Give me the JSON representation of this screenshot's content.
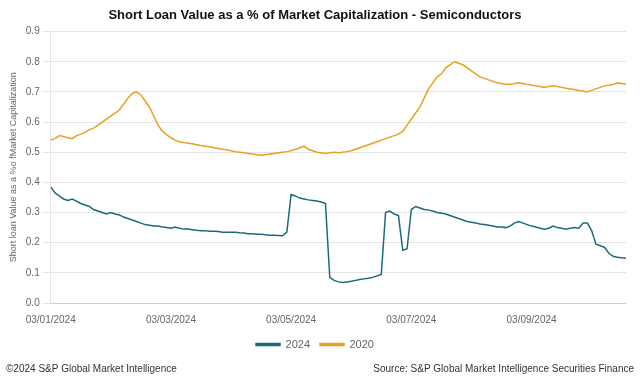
{
  "chart_data": {
    "type": "line",
    "title": "Short Loan Value as a % of Market Capitalization - Semiconductors",
    "ylabel": "Short loan Value as a %o fMarket Capitalization",
    "categories": [
      "03/01/2024",
      null,
      null,
      null,
      null,
      null,
      null,
      null,
      null,
      null,
      null,
      null,
      null,
      null,
      null,
      null,
      null,
      null,
      null,
      null,
      null,
      null,
      null,
      null,
      null,
      null,
      null,
      null,
      "03/03/2024",
      null,
      null,
      null,
      null,
      null,
      null,
      null,
      null,
      null,
      null,
      null,
      null,
      null,
      null,
      null,
      null,
      null,
      null,
      null,
      null,
      null,
      null,
      null,
      null,
      null,
      null,
      null,
      "03/05/2024",
      null,
      null,
      null,
      null,
      null,
      null,
      null,
      null,
      null,
      null,
      null,
      null,
      null,
      null,
      null,
      null,
      null,
      null,
      null,
      null,
      null,
      null,
      null,
      null,
      null,
      null,
      null,
      "03/07/2024",
      null,
      null,
      null,
      null,
      null,
      null,
      null,
      null,
      null,
      null,
      null,
      null,
      null,
      null,
      null,
      null,
      null,
      null,
      null,
      null,
      null,
      null,
      null,
      null,
      null,
      null,
      null,
      "03/09/2024",
      null,
      null,
      null,
      null,
      null,
      null,
      null,
      null,
      null,
      null,
      null,
      null,
      null,
      null,
      null,
      null,
      null,
      null,
      null,
      null,
      null,
      null
    ],
    "series": [
      {
        "name": "2024",
        "color": "#1a6b7a",
        "values": [
          0.385,
          0.365,
          0.355,
          0.345,
          0.34,
          0.345,
          0.338,
          0.33,
          0.325,
          0.32,
          0.31,
          0.305,
          0.3,
          0.295,
          0.3,
          0.295,
          0.292,
          0.285,
          0.28,
          0.275,
          0.27,
          0.265,
          0.26,
          0.258,
          0.255,
          0.255,
          0.252,
          0.25,
          0.248,
          0.252,
          0.248,
          0.245,
          0.245,
          0.243,
          0.241,
          0.24,
          0.24,
          0.238,
          0.238,
          0.237,
          0.235,
          0.235,
          0.235,
          0.235,
          0.233,
          0.232,
          0.23,
          0.23,
          0.228,
          0.228,
          0.226,
          0.225,
          0.225,
          0.224,
          0.223,
          0.235,
          0.36,
          0.355,
          0.348,
          0.345,
          0.342,
          0.34,
          0.338,
          0.335,
          0.33,
          0.085,
          0.075,
          0.07,
          0.068,
          0.07,
          0.072,
          0.075,
          0.078,
          0.08,
          0.082,
          0.085,
          0.09,
          0.095,
          0.3,
          0.305,
          0.295,
          0.29,
          0.175,
          0.18,
          0.31,
          0.32,
          0.315,
          0.31,
          0.308,
          0.305,
          0.3,
          0.298,
          0.295,
          0.29,
          0.285,
          0.28,
          0.275,
          0.27,
          0.268,
          0.265,
          0.262,
          0.26,
          0.258,
          0.255,
          0.252,
          0.252,
          0.25,
          0.255,
          0.265,
          0.27,
          0.265,
          0.26,
          0.255,
          0.252,
          0.248,
          0.245,
          0.248,
          0.255,
          0.25,
          0.248,
          0.245,
          0.248,
          0.25,
          0.248,
          0.265,
          0.265,
          0.24,
          0.195,
          0.19,
          0.185,
          0.165,
          0.155,
          0.152,
          0.15,
          0.148
        ]
      },
      {
        "name": "2020",
        "color": "#e8a020",
        "values": [
          0.54,
          0.545,
          0.555,
          0.552,
          0.548,
          0.545,
          0.555,
          0.56,
          0.565,
          0.575,
          0.58,
          0.59,
          0.6,
          0.61,
          0.62,
          0.63,
          0.64,
          0.66,
          0.68,
          0.695,
          0.7,
          0.69,
          0.67,
          0.65,
          0.62,
          0.59,
          0.57,
          0.558,
          0.548,
          0.54,
          0.535,
          0.532,
          0.53,
          0.528,
          0.525,
          0.522,
          0.52,
          0.518,
          0.515,
          0.512,
          0.51,
          0.508,
          0.505,
          0.502,
          0.5,
          0.498,
          0.496,
          0.494,
          0.492,
          0.49,
          0.492,
          0.494,
          0.496,
          0.498,
          0.5,
          0.502,
          0.505,
          0.51,
          0.515,
          0.52,
          0.51,
          0.505,
          0.5,
          0.498,
          0.496,
          0.498,
          0.5,
          0.498,
          0.5,
          0.502,
          0.505,
          0.51,
          0.515,
          0.52,
          0.525,
          0.53,
          0.535,
          0.54,
          0.545,
          0.55,
          0.555,
          0.56,
          0.57,
          0.59,
          0.61,
          0.63,
          0.65,
          0.68,
          0.71,
          0.73,
          0.75,
          0.76,
          0.78,
          0.79,
          0.8,
          0.795,
          0.79,
          0.78,
          0.77,
          0.76,
          0.75,
          0.745,
          0.74,
          0.735,
          0.73,
          0.728,
          0.725,
          0.725,
          0.728,
          0.73,
          0.728,
          0.725,
          0.722,
          0.72,
          0.718,
          0.715,
          0.718,
          0.72,
          0.718,
          0.715,
          0.712,
          0.71,
          0.708,
          0.705,
          0.703,
          0.7,
          0.705,
          0.71,
          0.715,
          0.72,
          0.722,
          0.725,
          0.73,
          0.728,
          0.725
        ]
      }
    ],
    "ylim": [
      0,
      0.9
    ],
    "yticks": [
      {
        "value": 0,
        "label": "0.0"
      },
      0.1,
      0.2,
      0.3,
      0.4,
      0.5,
      0.6,
      0.7,
      0.8,
      0.9
    ],
    "grid": true,
    "legend": "bottom",
    "annotations": [
      "©2024 S&P Global Market Intelligence",
      "Source: S&P Global Market Intelligence Securities Finance"
    ]
  }
}
